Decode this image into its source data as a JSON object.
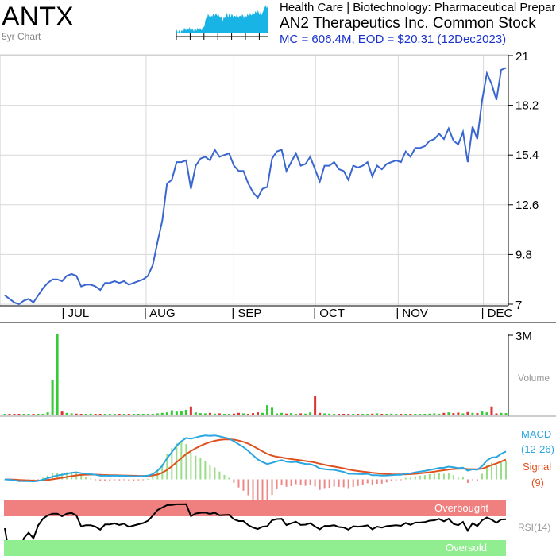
{
  "header": {
    "ticker": "ANTX",
    "chart_kind": "5yr Chart",
    "sector": "Health Care | Biotechnology: Pharmaceutical Preparations",
    "company": "AN2 Therapeutics Inc. Common Stock",
    "stats": "MC = 606.4M, EOD = $20.31 (12Dec2023)"
  },
  "colors": {
    "price": "#3a66d0",
    "macd": "#2aa6e0",
    "signal": "#e0501e",
    "vol_up": "#33cc33",
    "vol_down": "#dd3333",
    "hist_pos": "#99dd88",
    "hist_neg": "#ee8888",
    "overbought": "#f08080",
    "oversold": "#90ee90",
    "rsi": "#000000",
    "grid": "#d8d8d8"
  },
  "labels": {
    "volume": "Volume",
    "volume_max": "3M",
    "macd": "MACD",
    "macd_params": "(12-26)",
    "signal": "Signal",
    "signal_params": "(9)",
    "overbought": "Overbought",
    "rsi": "RSI(14)",
    "oversold": "Oversold"
  },
  "chart_data": {
    "type": "line",
    "y_ticks": [
      "21",
      "18.2",
      "15.4",
      "12.6",
      "9.8",
      "7"
    ],
    "ylim": [
      7,
      21
    ],
    "x_ticks": [
      "JUL",
      "AUG",
      "SEP",
      "OCT",
      "NOV",
      "DEC"
    ],
    "series": [
      {
        "values": [
          7.5,
          7.3,
          7.1,
          7.0,
          7.2,
          7.3,
          7.1,
          7.5,
          7.9,
          8.2,
          8.4,
          8.4,
          8.3,
          8.6,
          8.7,
          8.6,
          8.0,
          8.1,
          8.1,
          8.0,
          7.8,
          8.2,
          8.2,
          8.3,
          8.2,
          8.3,
          8.1,
          8.2,
          8.3,
          8.4,
          8.6,
          9.2,
          10.5,
          11.7,
          13.8,
          14.0,
          15.0,
          15.0,
          15.1,
          13.5,
          14.8,
          15.2,
          15.3,
          15.1,
          15.7,
          15.3,
          15.4,
          15.5,
          14.8,
          14.5,
          14.5,
          13.8,
          13.3,
          13.0,
          13.5,
          13.6,
          15.2,
          15.6,
          15.7,
          14.5,
          15.0,
          15.5,
          14.8,
          14.9,
          15.3,
          14.6,
          13.9,
          14.8,
          14.8,
          15.0,
          14.6,
          14.5,
          14.0,
          14.8,
          14.7,
          14.8,
          15.0,
          14.2,
          14.8,
          14.6,
          14.9,
          15.0,
          15.1,
          15.0,
          15.6,
          15.3,
          15.8,
          15.8,
          15.9,
          16.2,
          16.3,
          16.6,
          16.3,
          16.9,
          16.2,
          16.0,
          16.7,
          15.0,
          17.0,
          16.3,
          18.5,
          20.0,
          19.4,
          18.5,
          20.2,
          20.31
        ]
      }
    ],
    "volume_values": [
      0.05,
      0.04,
      0.03,
      0.04,
      0.02,
      0.03,
      0.04,
      0.05,
      0.06,
      0.12,
      1.4,
      3.2,
      0.15,
      0.1,
      0.08,
      0.07,
      0.06,
      0.05,
      0.07,
      0.05,
      0.04,
      0.05,
      0.04,
      0.06,
      0.05,
      0.05,
      0.04,
      0.06,
      0.05,
      0.04,
      0.05,
      0.06,
      0.08,
      0.1,
      0.12,
      0.2,
      0.15,
      0.18,
      0.22,
      0.35,
      0.12,
      0.09,
      0.08,
      0.1,
      0.07,
      0.08,
      0.06,
      0.05,
      0.07,
      0.1,
      0.08,
      0.06,
      0.09,
      0.12,
      0.1,
      0.4,
      0.3,
      0.08,
      0.1,
      0.07,
      0.09,
      0.06,
      0.08,
      0.07,
      0.12,
      0.75,
      0.1,
      0.08,
      0.07,
      0.06,
      0.05,
      0.06,
      0.05,
      0.04,
      0.05,
      0.06,
      0.05,
      0.07,
      0.08,
      0.06,
      0.05,
      0.07,
      0.06,
      0.05,
      0.06,
      0.05,
      0.04,
      0.06,
      0.05,
      0.07,
      0.08,
      0.06,
      0.1,
      0.12,
      0.09,
      0.11,
      0.08,
      0.13,
      0.1,
      0.09,
      0.15,
      0.12,
      0.35,
      0.08,
      0.1,
      0.09
    ],
    "volume_ylim": [
      0,
      3.2
    ],
    "macd_ylim": [
      -0.8,
      2.6
    ],
    "rsi_ylim": [
      0,
      100
    ]
  }
}
